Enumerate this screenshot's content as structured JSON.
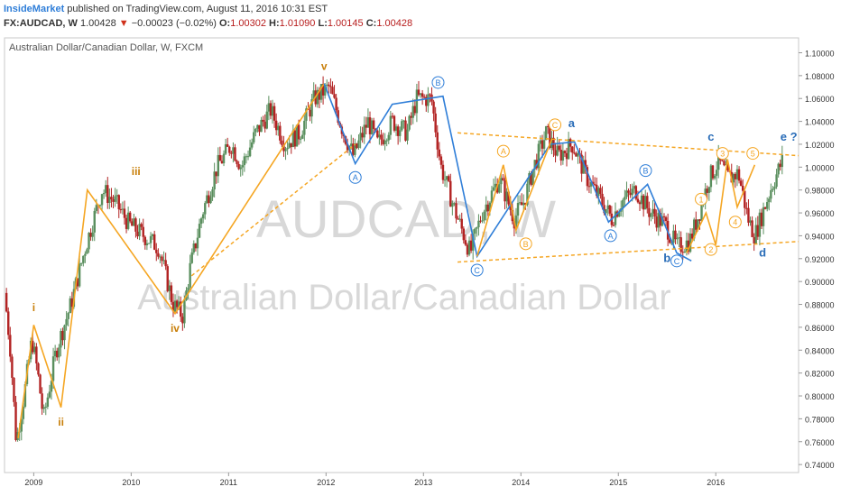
{
  "header": {
    "brand": "InsideMarket",
    "published": " published on TradingView.com, August 11, 2016 10:31 EST",
    "symbol": "FX:AUDCAD, W",
    "last": "1.00428",
    "arrow": "▼",
    "change": "−0.00023 (−0.02%)",
    "o_label": "O:",
    "o_value": "1.00302",
    "h_label": "H:",
    "h_value": "1.01090",
    "l_label": "L:",
    "l_value": "1.00145",
    "c_label": "C:",
    "c_value": "1.00428"
  },
  "colors": {
    "up": "#5a8f5e",
    "down": "#b22222",
    "orange": "#f5a623",
    "blue": "#2f7ed8",
    "wave_label": "#c87f0a",
    "watermark": "#d8d8d8"
  },
  "chart_data": {
    "type": "candlestick",
    "title": "Australian Dollar/Canadian Dollar, W, FXCM",
    "watermark_symbol": "AUDCAD, W",
    "watermark_name": "Australian Dollar/Canadian Dollar",
    "x_ticks": [
      "2009",
      "2010",
      "2011",
      "2012",
      "2013",
      "2014",
      "2015",
      "2016"
    ],
    "x_tick_values": [
      2009.0,
      2010.0,
      2011.0,
      2012.0,
      2013.0,
      2014.0,
      2015.0,
      2016.0
    ],
    "y_ticks": [
      "1.10000",
      "1.08000",
      "1.06000",
      "1.04000",
      "1.02000",
      "1.00000",
      "0.98000",
      "0.96000",
      "0.94000",
      "0.92000",
      "0.90000",
      "0.88000",
      "0.86000",
      "0.84000",
      "0.82000",
      "0.80000",
      "0.78000",
      "0.76000",
      "0.74000"
    ],
    "y_tick_values": [
      1.1,
      1.08,
      1.06,
      1.04,
      1.02,
      1.0,
      0.98,
      0.96,
      0.94,
      0.92,
      0.9,
      0.88,
      0.86,
      0.84,
      0.82,
      0.8,
      0.78,
      0.76,
      0.74
    ],
    "x_range": [
      2008.7,
      2016.85
    ],
    "y_range": [
      0.733,
      1.113
    ],
    "price_path": [
      [
        2008.72,
        0.89
      ],
      [
        2008.78,
        0.84
      ],
      [
        2008.84,
        0.76
      ],
      [
        2008.92,
        0.8
      ],
      [
        2009.0,
        0.85
      ],
      [
        2009.06,
        0.82
      ],
      [
        2009.12,
        0.78
      ],
      [
        2009.25,
        0.84
      ],
      [
        2009.4,
        0.88
      ],
      [
        2009.55,
        0.93
      ],
      [
        2009.72,
        0.98
      ],
      [
        2009.85,
        0.97
      ],
      [
        2010.0,
        0.95
      ],
      [
        2010.15,
        0.94
      ],
      [
        2010.3,
        0.93
      ],
      [
        2010.45,
        0.88
      ],
      [
        2010.55,
        0.87
      ],
      [
        2010.62,
        0.91
      ],
      [
        2010.75,
        0.96
      ],
      [
        2010.9,
        1.0
      ],
      [
        2011.05,
        1.02
      ],
      [
        2011.15,
        1.0
      ],
      [
        2011.3,
        1.03
      ],
      [
        2011.45,
        1.05
      ],
      [
        2011.6,
        1.02
      ],
      [
        2011.75,
        1.03
      ],
      [
        2011.9,
        1.06
      ],
      [
        2012.05,
        1.07
      ],
      [
        2012.2,
        1.03
      ],
      [
        2012.3,
        1.01
      ],
      [
        2012.45,
        1.04
      ],
      [
        2012.55,
        1.02
      ],
      [
        2012.7,
        1.04
      ],
      [
        2012.85,
        1.03
      ],
      [
        2012.95,
        1.06
      ],
      [
        2013.1,
        1.06
      ],
      [
        2013.2,
        1.0
      ],
      [
        2013.35,
        0.96
      ],
      [
        2013.5,
        0.925
      ],
      [
        2013.62,
        0.96
      ],
      [
        2013.8,
        0.99
      ],
      [
        2013.95,
        0.955
      ],
      [
        2014.05,
        0.97
      ],
      [
        2014.15,
        1.0
      ],
      [
        2014.28,
        1.03
      ],
      [
        2014.4,
        1.01
      ],
      [
        2014.55,
        1.02
      ],
      [
        2014.7,
        0.99
      ],
      [
        2014.85,
        0.97
      ],
      [
        2014.95,
        0.955
      ],
      [
        2015.05,
        0.97
      ],
      [
        2015.2,
        0.98
      ],
      [
        2015.35,
        0.96
      ],
      [
        2015.5,
        0.95
      ],
      [
        2015.62,
        0.93
      ],
      [
        2015.75,
        0.935
      ],
      [
        2015.85,
        0.96
      ],
      [
        2015.95,
        0.99
      ],
      [
        2016.05,
        1.005
      ],
      [
        2016.15,
        0.99
      ],
      [
        2016.25,
        0.995
      ],
      [
        2016.35,
        0.955
      ],
      [
        2016.42,
        0.94
      ],
      [
        2016.5,
        0.96
      ],
      [
        2016.6,
        0.985
      ],
      [
        2016.7,
        1.005
      ]
    ],
    "wave_lines": [
      {
        "name": "orange-impulse",
        "color": "orange",
        "dashed": false,
        "points": [
          [
            2008.84,
            0.763
          ],
          [
            2009.0,
            0.862
          ],
          [
            2009.28,
            0.79
          ],
          [
            2009.55,
            0.98
          ],
          [
            2010.45,
            0.872
          ],
          [
            2011.98,
            1.073
          ]
        ]
      },
      {
        "name": "orange-dashed-channel",
        "color": "orange",
        "dashed": true,
        "points": [
          [
            2010.62,
            0.905
          ],
          [
            2012.3,
            1.02
          ]
        ]
      },
      {
        "name": "blue-abc",
        "color": "blue",
        "dashed": false,
        "points": [
          [
            2011.98,
            1.073
          ],
          [
            2012.3,
            1.003
          ],
          [
            2012.68,
            1.055
          ],
          [
            2013.2,
            1.062
          ],
          [
            2013.55,
            0.922
          ],
          [
            2014.3,
            1.02
          ],
          [
            2014.55,
            1.022
          ],
          [
            2014.9,
            0.952
          ],
          [
            2015.3,
            0.985
          ],
          [
            2015.6,
            0.925
          ],
          [
            2015.75,
            0.918
          ]
        ]
      },
      {
        "name": "orange-a-b",
        "color": "orange",
        "dashed": false,
        "points": [
          [
            2013.55,
            0.922
          ],
          [
            2013.82,
            1.002
          ],
          [
            2013.95,
            0.945
          ],
          [
            2014.32,
            1.025
          ]
        ]
      },
      {
        "name": "orange-12345",
        "color": "orange",
        "dashed": false,
        "points": [
          [
            2015.7,
            0.925
          ],
          [
            2015.9,
            0.96
          ],
          [
            2016.0,
            0.932
          ],
          [
            2016.12,
            1.007
          ],
          [
            2016.22,
            0.965
          ],
          [
            2016.4,
            1.002
          ]
        ]
      },
      {
        "name": "upper-triangle-line",
        "color": "orange",
        "dashed": true,
        "points": [
          [
            2013.35,
            1.03
          ],
          [
            2016.85,
            1.01
          ]
        ]
      },
      {
        "name": "lower-triangle-line",
        "color": "orange",
        "dashed": true,
        "points": [
          [
            2013.35,
            0.917
          ],
          [
            2016.85,
            0.935
          ]
        ]
      }
    ],
    "wave_labels": [
      {
        "text": "i",
        "x": 2009.0,
        "y": 0.874,
        "style": "roman"
      },
      {
        "text": "ii",
        "x": 2009.28,
        "y": 0.774,
        "style": "roman"
      },
      {
        "text": "iii",
        "x": 2010.05,
        "y": 0.993,
        "style": "roman"
      },
      {
        "text": "iv",
        "x": 2010.45,
        "y": 0.856,
        "style": "roman"
      },
      {
        "text": "v",
        "x": 2011.98,
        "y": 1.085,
        "style": "roman"
      },
      {
        "text": "a",
        "x": 2014.52,
        "y": 1.035,
        "style": "blue-letter"
      },
      {
        "text": "c",
        "x": 2015.95,
        "y": 1.023,
        "style": "blue-letter"
      },
      {
        "text": "b",
        "x": 2015.5,
        "y": 0.917,
        "style": "blue-letter"
      },
      {
        "text": "d",
        "x": 2016.48,
        "y": 0.922,
        "style": "blue-letter"
      },
      {
        "text": "e ?",
        "x": 2016.75,
        "y": 1.023,
        "style": "blue-letter"
      }
    ],
    "wave_circles": [
      {
        "text": "A",
        "x": 2012.3,
        "y": 0.991,
        "color": "blue"
      },
      {
        "text": "B",
        "x": 2013.15,
        "y": 1.074,
        "color": "blue"
      },
      {
        "text": "C",
        "x": 2013.55,
        "y": 0.91,
        "color": "blue"
      },
      {
        "text": "A",
        "x": 2013.82,
        "y": 1.014,
        "color": "orange"
      },
      {
        "text": "B",
        "x": 2014.05,
        "y": 0.933,
        "color": "orange"
      },
      {
        "text": "C",
        "x": 2014.35,
        "y": 1.037,
        "color": "orange"
      },
      {
        "text": "A",
        "x": 2014.92,
        "y": 0.94,
        "color": "blue"
      },
      {
        "text": "B",
        "x": 2015.28,
        "y": 0.997,
        "color": "blue"
      },
      {
        "text": "C",
        "x": 2015.6,
        "y": 0.918,
        "color": "blue"
      },
      {
        "text": "1",
        "x": 2015.85,
        "y": 0.972,
        "color": "orange"
      },
      {
        "text": "2",
        "x": 2015.95,
        "y": 0.928,
        "color": "orange"
      },
      {
        "text": "3",
        "x": 2016.07,
        "y": 1.012,
        "color": "orange"
      },
      {
        "text": "4",
        "x": 2016.2,
        "y": 0.952,
        "color": "orange"
      },
      {
        "text": "5",
        "x": 2016.38,
        "y": 1.012,
        "color": "orange"
      }
    ],
    "grid": false
  }
}
